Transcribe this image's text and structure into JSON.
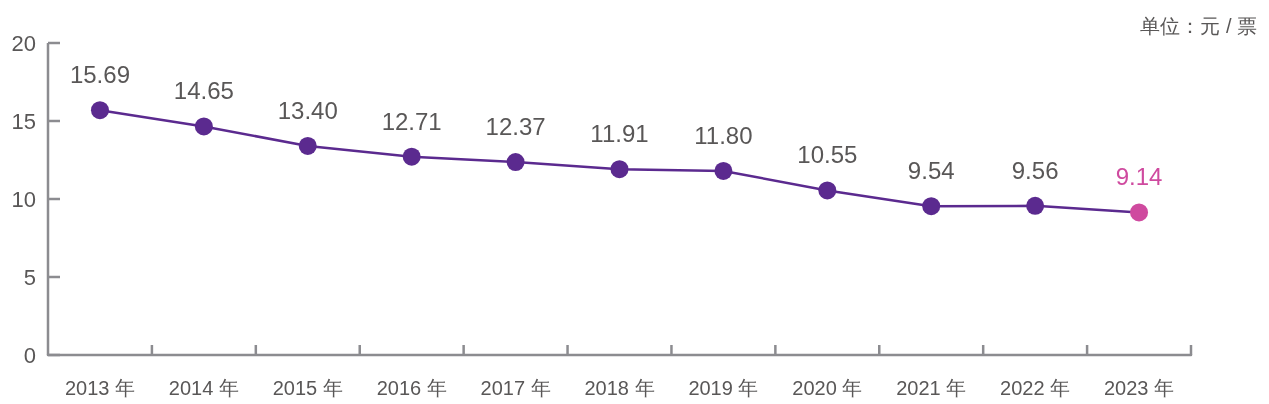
{
  "chart_data": {
    "type": "line",
    "categories": [
      "2013 年",
      "2014 年",
      "2015 年",
      "2016 年",
      "2017 年",
      "2018 年",
      "2019 年",
      "2020 年",
      "2021 年",
      "2022 年",
      "2023 年"
    ],
    "series": [
      {
        "color": "#5b2a8f",
        "colors": [
          "#5b2a8f",
          "#5b2a8f",
          "#5b2a8f",
          "#5b2a8f",
          "#5b2a8f",
          "#5b2a8f",
          "#5b2a8f",
          "#5b2a8f",
          "#5b2a8f",
          "#5b2a8f",
          "#cf4a9f"
        ],
        "values": [
          15.69,
          14.65,
          13.4,
          12.71,
          12.37,
          11.91,
          11.8,
          10.55,
          9.54,
          9.56,
          9.14
        ],
        "value_labels": [
          "15.69",
          "14.65",
          "13.40",
          "12.71",
          "12.37",
          "11.91",
          "11.80",
          "10.55",
          "9.54",
          "9.56",
          "9.14"
        ]
      }
    ],
    "ylim": [
      0,
      20
    ],
    "yticks": [
      0,
      5,
      10,
      15,
      20
    ],
    "marker": "circle",
    "line_style": "solid",
    "annotations": [
      "单位：元 / 票"
    ]
  }
}
